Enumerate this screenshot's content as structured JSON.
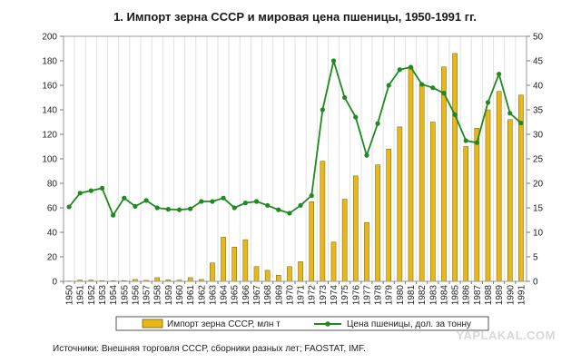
{
  "chart_data": {
    "type": "bar+line",
    "title": "1. Импорт зерна СССР и мировая цена пшеницы, 1950-1991 гг.",
    "categories": [
      "1950",
      "1951",
      "1952",
      "1953",
      "1954",
      "1955",
      "1956",
      "1957",
      "1958",
      "1959",
      "1960",
      "1961",
      "1962",
      "1963",
      "1964",
      "1965",
      "1966",
      "1967",
      "1968",
      "1969",
      "1970",
      "1971",
      "1972",
      "1973",
      "1974",
      "1975",
      "1976",
      "1977",
      "1978",
      "1979",
      "1980",
      "1981",
      "1982",
      "1983",
      "1984",
      "1985",
      "1986",
      "1987",
      "1988",
      "1989",
      "1990",
      "1991"
    ],
    "series": [
      {
        "name": "Импорт зерна СССР, млн т",
        "type": "bar",
        "axis": "left",
        "color": "#e8b81a",
        "values": [
          0.3,
          1,
          1,
          0.5,
          0.5,
          0.5,
          1.5,
          0.8,
          3,
          1.2,
          1,
          3,
          1.5,
          15,
          36,
          28,
          34,
          12,
          9,
          5,
          12,
          16,
          65,
          98,
          32,
          67,
          86,
          48,
          95,
          108,
          126,
          175,
          161,
          130,
          175,
          186,
          110,
          125,
          140,
          155,
          132,
          152
        ]
      },
      {
        "name": "Цена пшеницы, дол. за тонну",
        "type": "line",
        "axis": "right",
        "color": "#1f8a1f",
        "values": [
          15.2,
          18,
          18.5,
          19,
          13.5,
          17,
          15.3,
          16.5,
          15,
          14.7,
          14.6,
          14.8,
          16.3,
          16.3,
          17,
          15,
          16,
          16.3,
          15.5,
          14.6,
          13.9,
          15.5,
          17.5,
          35,
          45,
          37.5,
          33.5,
          25.7,
          32.2,
          40,
          43.2,
          43.7,
          40.2,
          39.5,
          38.4,
          34,
          28.7,
          28.3,
          36.5,
          42.3,
          34.3,
          32.3
        ]
      }
    ],
    "ylim_left": [
      0,
      200
    ],
    "ylim_right": [
      0,
      50
    ],
    "yticks_left": [
      "0",
      "20",
      "40",
      "60",
      "80",
      "100",
      "120",
      "140",
      "160",
      "180",
      "200"
    ],
    "yticks_right": [
      "0",
      "5",
      "10",
      "15",
      "20",
      "25",
      "30",
      "35",
      "40",
      "45",
      "50"
    ],
    "legend_position": "bottom",
    "grid": "vertical only",
    "colors": {
      "bar": "#e8b81a",
      "bar_edge": "#7a5c00",
      "line": "#1f8a1f"
    }
  },
  "source_note": "Источники: Внешняя торговля СССР, сборники разных лет; FAOSTAT, IMF.",
  "watermark": "YAPLAKAL.COM"
}
